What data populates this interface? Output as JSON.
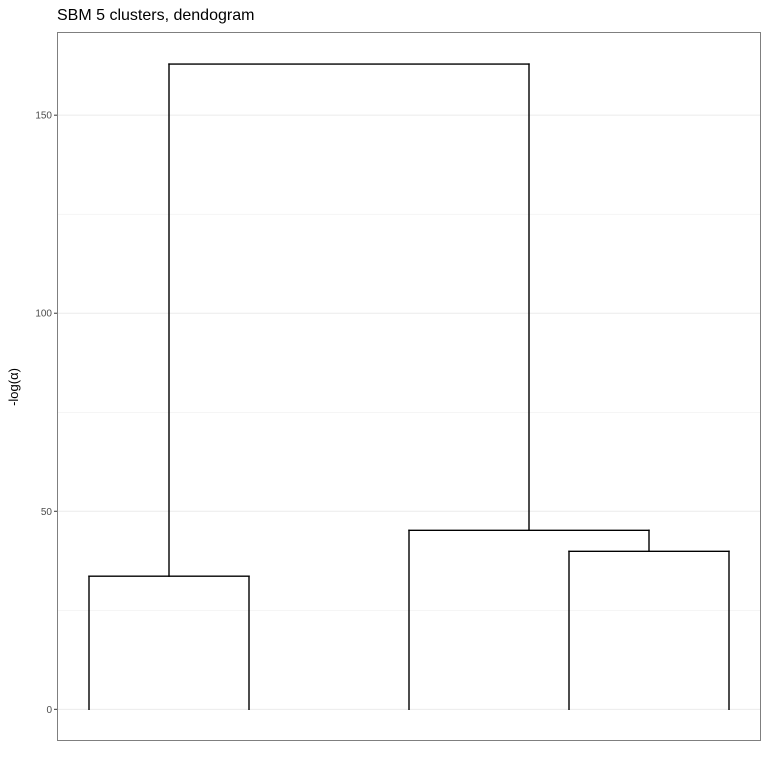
{
  "chart_data": {
    "type": "dendrogram",
    "title": "SBM 5 clusters, dendogram",
    "xlabel": "",
    "ylabel": "-log(α)",
    "xlim": [
      0.8,
      5.2
    ],
    "ylim": [
      -8,
      171
    ],
    "y_ticks": [
      0,
      50,
      100,
      150
    ],
    "y_minor_ticks": [
      25,
      75,
      125
    ],
    "grid": true,
    "leaves": [
      1,
      2,
      3,
      4,
      5
    ],
    "merges": [
      {
        "children": [
          "leaf 1",
          "leaf 2"
        ],
        "height": 33.6
      },
      {
        "children": [
          "leaf 4",
          "leaf 5"
        ],
        "height": 39.9
      },
      {
        "children": [
          "leaf 3",
          "cluster(4,5)"
        ],
        "height": 45.2
      },
      {
        "children": [
          "cluster(1,2)",
          "cluster(3,4,5)"
        ],
        "height": 162.9
      }
    ],
    "segments": [
      {
        "x": 1,
        "y": 0,
        "xend": 1,
        "yend": 33.6
      },
      {
        "x": 1,
        "y": 33.6,
        "xend": 2,
        "yend": 33.6
      },
      {
        "x": 2,
        "y": 33.6,
        "xend": 2,
        "yend": 0
      },
      {
        "x": 4,
        "y": 0,
        "xend": 4,
        "yend": 39.9
      },
      {
        "x": 4,
        "y": 39.9,
        "xend": 5,
        "yend": 39.9
      },
      {
        "x": 5,
        "y": 39.9,
        "xend": 5,
        "yend": 0
      },
      {
        "x": 3,
        "y": 0,
        "xend": 3,
        "yend": 45.2
      },
      {
        "x": 3,
        "y": 45.2,
        "xend": 4.5,
        "yend": 45.2
      },
      {
        "x": 4.5,
        "y": 45.2,
        "xend": 4.5,
        "yend": 39.9
      },
      {
        "x": 1.5,
        "y": 33.6,
        "xend": 1.5,
        "yend": 162.9
      },
      {
        "x": 1.5,
        "y": 162.9,
        "xend": 3.75,
        "yend": 162.9
      },
      {
        "x": 3.75,
        "y": 162.9,
        "xend": 3.75,
        "yend": 45.2
      }
    ],
    "colors": {
      "line": "#000000",
      "grid": "#ebebeb",
      "panel_border": "#7f7f7f"
    }
  }
}
